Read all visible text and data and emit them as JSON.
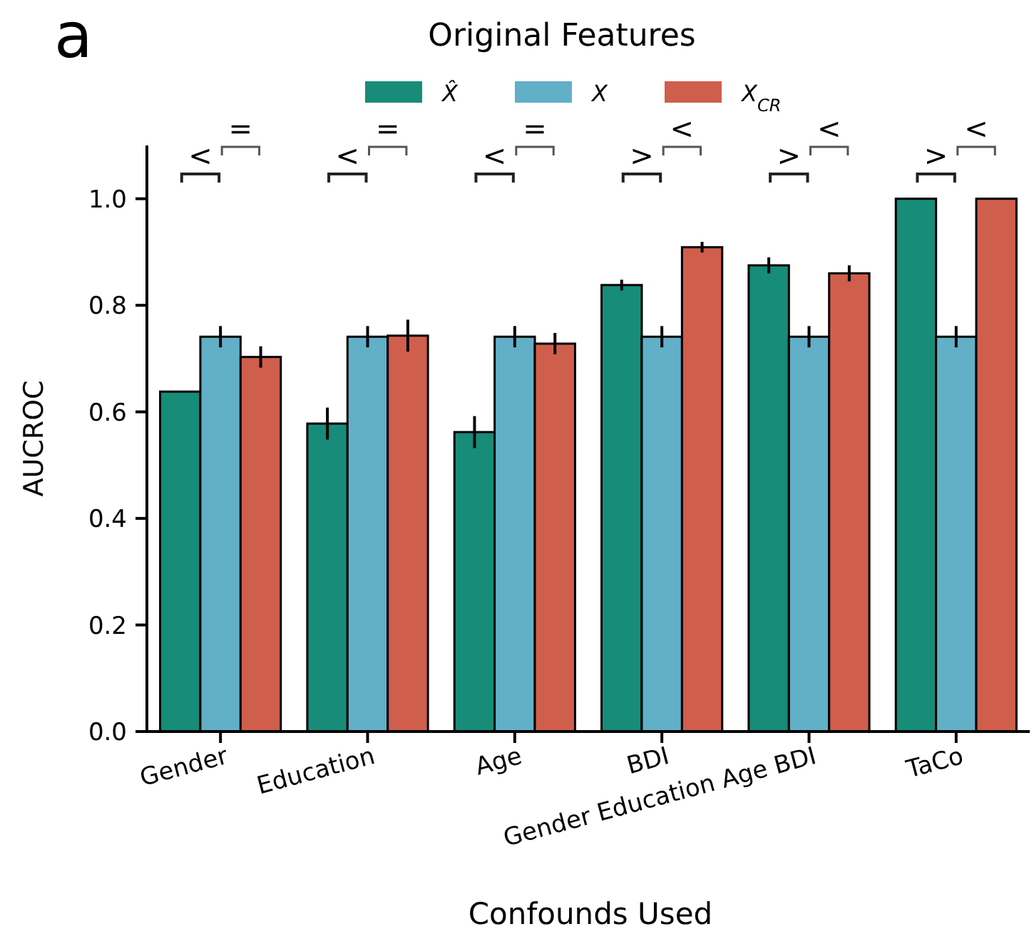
{
  "chart_data": {
    "type": "bar",
    "title": "Original Features",
    "xlabel": "Confounds Used",
    "ylabel": "AUCROC",
    "categories": [
      "Gender",
      "Education",
      "Age",
      "BDI",
      "Gender Education Age BDI",
      "TaCo"
    ],
    "series": [
      {
        "name": "X̂",
        "color": "#178c78",
        "values": [
          0.638,
          0.578,
          0.562,
          0.838,
          0.875,
          1.0
        ],
        "errors": [
          null,
          0.03,
          0.03,
          0.01,
          0.015,
          null
        ]
      },
      {
        "name": "X",
        "color": "#62afc8",
        "values": [
          0.741,
          0.741,
          0.741,
          0.741,
          0.741,
          0.741
        ],
        "errors": [
          0.02,
          0.02,
          0.02,
          0.02,
          0.02,
          0.02
        ]
      },
      {
        "name": "X$_{CR}$",
        "color": "#d05e4c",
        "values": [
          0.703,
          0.743,
          0.728,
          0.909,
          0.86,
          1.0
        ],
        "errors": [
          0.02,
          0.03,
          0.02,
          0.01,
          0.015,
          null
        ]
      }
    ],
    "ylim": [
      0,
      1.1
    ],
    "yticks": [
      {
        "value": 0,
        "label": "0.0"
      },
      {
        "value": 0.2,
        "label": "0.2"
      },
      {
        "value": 0.4,
        "label": "0.4"
      },
      {
        "value": 0.6,
        "label": "0.6"
      },
      {
        "value": 0.8,
        "label": "0.8"
      },
      {
        "value": 1,
        "label": "1.0"
      }
    ],
    "legend": "top",
    "grid": false,
    "annotations": [
      "a",
      "<",
      "=",
      "<",
      "=",
      "<",
      "=",
      ">",
      "<",
      ">",
      "<",
      ">",
      "<"
    ]
  }
}
